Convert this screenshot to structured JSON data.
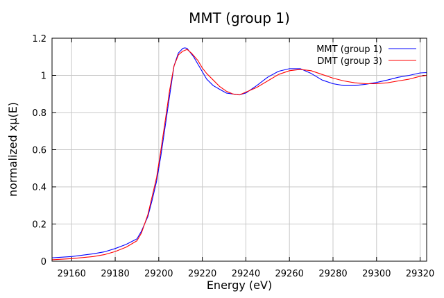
{
  "chart_data": {
    "type": "line",
    "title": "MMT (group 1)",
    "xlabel": "Energy    (eV)",
    "ylabel": "normalized xμ(E)",
    "xlim": [
      29151,
      29323
    ],
    "ylim": [
      0,
      1.2
    ],
    "x_ticks": [
      29160,
      29180,
      29200,
      29220,
      29240,
      29260,
      29280,
      29300,
      29320
    ],
    "x_tick_labels": [
      "29160",
      "29180",
      "29200",
      "29220",
      "29240",
      "29260",
      "29280",
      "29300",
      "29320"
    ],
    "y_ticks": [
      0,
      0.2,
      0.4,
      0.6,
      0.8,
      1,
      1.2
    ],
    "y_tick_labels": [
      "0",
      "0.2",
      "0.4",
      "0.6",
      "0.8",
      "1",
      "1.2"
    ],
    "grid": true,
    "legend_position": "top-right",
    "series": [
      {
        "name": "MMT (group 1)",
        "color": "#0000ff",
        "x": [
          29151,
          29160,
          29170,
          29175,
          29180,
          29185,
          29190,
          29192,
          29195,
          29197,
          29199,
          29201,
          29203,
          29205,
          29207,
          29209,
          29211,
          29212,
          29213,
          29214,
          29216,
          29218,
          29220,
          29222,
          29225,
          29228,
          29231,
          29234,
          29237,
          29240,
          29245,
          29250,
          29255,
          29260,
          29265,
          29270,
          29275,
          29280,
          29285,
          29290,
          29295,
          29300,
          29305,
          29310,
          29315,
          29320,
          29323
        ],
        "y": [
          0.018,
          0.025,
          0.04,
          0.05,
          0.068,
          0.09,
          0.12,
          0.16,
          0.24,
          0.33,
          0.43,
          0.57,
          0.73,
          0.89,
          1.05,
          1.12,
          1.145,
          1.148,
          1.145,
          1.13,
          1.1,
          1.06,
          1.02,
          0.98,
          0.945,
          0.925,
          0.905,
          0.9,
          0.895,
          0.905,
          0.945,
          0.99,
          1.022,
          1.036,
          1.036,
          1.01,
          0.975,
          0.955,
          0.945,
          0.945,
          0.952,
          0.962,
          0.975,
          0.99,
          1.0,
          1.013,
          1.015
        ]
      },
      {
        "name": "DMT (group 3)",
        "color": "#ff0000",
        "x": [
          29151,
          29160,
          29170,
          29175,
          29180,
          29185,
          29190,
          29192,
          29195,
          29197,
          29199,
          29201,
          29203,
          29205,
          29207,
          29209,
          29211,
          29213,
          29215,
          29218,
          29220,
          29222,
          29225,
          29228,
          29231,
          29234,
          29237,
          29240,
          29245,
          29250,
          29255,
          29260,
          29265,
          29270,
          29275,
          29280,
          29285,
          29290,
          29295,
          29300,
          29305,
          29310,
          29315,
          29320,
          29323
        ],
        "y": [
          0.008,
          0.014,
          0.025,
          0.035,
          0.052,
          0.075,
          0.11,
          0.15,
          0.25,
          0.35,
          0.45,
          0.6,
          0.76,
          0.92,
          1.05,
          1.11,
          1.13,
          1.14,
          1.12,
          1.08,
          1.04,
          1.01,
          0.975,
          0.94,
          0.915,
          0.9,
          0.895,
          0.91,
          0.935,
          0.97,
          1.005,
          1.025,
          1.032,
          1.025,
          1.005,
          0.985,
          0.97,
          0.96,
          0.955,
          0.955,
          0.96,
          0.97,
          0.98,
          0.995,
          1.0
        ]
      }
    ]
  }
}
